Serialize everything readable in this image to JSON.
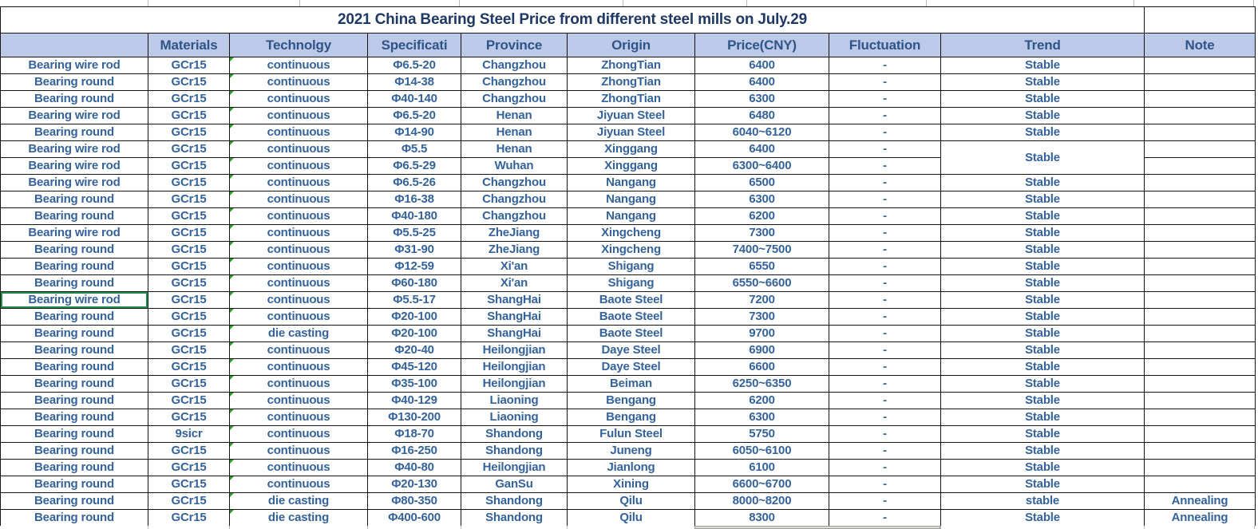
{
  "title": "2021 China Bearing Steel Price from different steel mills on July.29",
  "table": {
    "columns": [
      "",
      "Materials",
      "Technolgy",
      "Specificati",
      "Province",
      "Origin",
      "Price(CNY)",
      "Fluctuation",
      "Trend",
      "Note"
    ],
    "rows": [
      {
        "product": "Bearing wire rod",
        "material": "GCr15",
        "technology": "continuous",
        "specification": "Φ6.5-20",
        "province": "Changzhou",
        "origin": "ZhongTian",
        "price": "6400",
        "fluctuation": "-",
        "trend": "Stable",
        "note": ""
      },
      {
        "product": "Bearing round",
        "material": "GCr15",
        "technology": "continuous",
        "specification": "Φ14-38",
        "province": "Changzhou",
        "origin": "ZhongTian",
        "price": "6400",
        "fluctuation": "-",
        "trend": "Stable",
        "note": ""
      },
      {
        "product": "Bearing round",
        "material": "GCr15",
        "technology": "continuous",
        "specification": "Φ40-140",
        "province": "Changzhou",
        "origin": "ZhongTian",
        "price": "6300",
        "fluctuation": "-",
        "trend": "Stable",
        "note": ""
      },
      {
        "product": "Bearing wire rod",
        "material": "GCr15",
        "technology": "continuous",
        "specification": "Φ6.5-20",
        "province": "Henan",
        "origin": "Jiyuan Steel",
        "price": "6480",
        "fluctuation": "-",
        "trend": "Stable",
        "note": ""
      },
      {
        "product": "Bearing round",
        "material": "GCr15",
        "technology": "continuous",
        "specification": "Φ14-90",
        "province": "Henan",
        "origin": "Jiyuan Steel",
        "price": "6040~6120",
        "fluctuation": "-",
        "trend": "Stable",
        "note": ""
      },
      {
        "product": "Bearing wire rod",
        "material": "GCr15",
        "technology": "continuous",
        "specification": "Φ5.5",
        "province": "Henan",
        "origin": "Xinggang",
        "price": "6400",
        "fluctuation": "-",
        "trend": "Stable",
        "trend_rowspan": 2,
        "note": ""
      },
      {
        "product": "Bearing wire rod",
        "material": "GCr15",
        "technology": "continuous",
        "specification": "Φ6.5-29",
        "province": "Wuhan",
        "origin": "Xinggang",
        "price": "6300~6400",
        "fluctuation": "-",
        "trend": null,
        "note": ""
      },
      {
        "product": "Bearing wire rod",
        "material": "GCr15",
        "technology": "continuous",
        "specification": "Φ6.5-26",
        "province": "Changzhou",
        "origin": "Nangang",
        "price": "6500",
        "fluctuation": "-",
        "trend": "Stable",
        "note": ""
      },
      {
        "product": "Bearing round",
        "material": "GCr15",
        "technology": "continuous",
        "specification": "Φ16-38",
        "province": "Changzhou",
        "origin": "Nangang",
        "price": "6300",
        "fluctuation": "-",
        "trend": "Stable",
        "note": ""
      },
      {
        "product": "Bearing round",
        "material": "GCr15",
        "technology": "continuous",
        "specification": "Φ40-180",
        "province": "Changzhou",
        "origin": "Nangang",
        "price": "6200",
        "fluctuation": "-",
        "trend": "Stable",
        "note": ""
      },
      {
        "product": "Bearing wire rod",
        "material": "GCr15",
        "technology": "continuous",
        "specification": "Φ5.5-25",
        "province": "ZheJiang",
        "origin": "Xingcheng",
        "price": "7300",
        "fluctuation": "-",
        "trend": "Stable",
        "note": ""
      },
      {
        "product": "Bearing round",
        "material": "GCr15",
        "technology": "continuous",
        "specification": "Φ31-90",
        "province": "ZheJiang",
        "origin": "Xingcheng",
        "price": "7400~7500",
        "fluctuation": "-",
        "trend": "Stable",
        "note": ""
      },
      {
        "product": "Bearing round",
        "material": "GCr15",
        "technology": "continuous",
        "specification": "Φ12-59",
        "province": "Xi'an",
        "origin": "Shigang",
        "price": "6550",
        "fluctuation": "-",
        "trend": "Stable",
        "note": ""
      },
      {
        "product": "Bearing round",
        "material": "GCr15",
        "technology": "continuous",
        "specification": "Φ60-180",
        "province": "Xi'an",
        "origin": "Shigang",
        "price": "6550~6600",
        "fluctuation": "-",
        "trend": "Stable",
        "note": ""
      },
      {
        "product": "Bearing wire rod",
        "material": "GCr15",
        "technology": "continuous",
        "specification": "Φ5.5-17",
        "province": "ShangHai",
        "origin": "Baote Steel",
        "price": "7200",
        "fluctuation": "-",
        "trend": "Stable",
        "note": "",
        "selected": true
      },
      {
        "product": "Bearing round",
        "material": "GCr15",
        "technology": "continuous",
        "specification": "Φ20-100",
        "province": "ShangHai",
        "origin": "Baote Steel",
        "price": "7300",
        "fluctuation": "-",
        "trend": "Stable",
        "note": ""
      },
      {
        "product": "Bearing round",
        "material": "GCr15",
        "technology": "die casting",
        "specification": "Φ20-100",
        "province": "ShangHai",
        "origin": "Baote Steel",
        "price": "9700",
        "fluctuation": "-",
        "trend": "Stable",
        "note": ""
      },
      {
        "product": "Bearing round",
        "material": "GCr15",
        "technology": "continuous",
        "specification": "Φ20-40",
        "province": "Heilongjian",
        "origin": "Daye Steel",
        "price": "6900",
        "fluctuation": "-",
        "trend": "Stable",
        "note": ""
      },
      {
        "product": "Bearing round",
        "material": "GCr15",
        "technology": "continuous",
        "specification": "Φ45-120",
        "province": "Heilongjian",
        "origin": "Daye Steel",
        "price": "6600",
        "fluctuation": "-",
        "trend": "Stable",
        "note": ""
      },
      {
        "product": "Bearing round",
        "material": "GCr15",
        "technology": "continuous",
        "specification": "Φ35-100",
        "province": "Heilongjian",
        "origin": "Beiman",
        "price": "6250~6350",
        "fluctuation": "-",
        "trend": "Stable",
        "note": ""
      },
      {
        "product": "Bearing round",
        "material": "GCr15",
        "technology": "continuous",
        "specification": "Φ40-129",
        "province": "Liaoning",
        "origin": "Bengang",
        "price": "6200",
        "fluctuation": "-",
        "trend": "Stable",
        "note": ""
      },
      {
        "product": "Bearing round",
        "material": "GCr15",
        "technology": "continuous",
        "specification": "Φ130-200",
        "province": "Liaoning",
        "origin": "Bengang",
        "price": "6300",
        "fluctuation": "-",
        "trend": "Stable",
        "note": ""
      },
      {
        "product": "Bearing round",
        "material": "9sicr",
        "technology": "continuous",
        "specification": "Φ18-70",
        "province": "Shandong",
        "origin": "Fulun Steel",
        "price": "5750",
        "fluctuation": "-",
        "trend": "Stable",
        "note": ""
      },
      {
        "product": "Bearing round",
        "material": "GCr15",
        "technology": "continuous",
        "specification": "Φ16-250",
        "province": "Shandong",
        "origin": "Juneng",
        "price": "6050~6100",
        "fluctuation": "-",
        "trend": "Stable",
        "note": ""
      },
      {
        "product": "Bearing round",
        "material": "GCr15",
        "technology": "continuous",
        "specification": "Φ40-80",
        "province": "Heilongjian",
        "origin": "Jianlong",
        "price": "6100",
        "fluctuation": "-",
        "trend": "Stable",
        "note": ""
      },
      {
        "product": "Bearing round",
        "material": "GCr15",
        "technology": "continuous",
        "specification": "Φ20-130",
        "province": "GanSu",
        "origin": "Xining",
        "price": "6600~6700",
        "fluctuation": "-",
        "trend": "Stable",
        "note": ""
      },
      {
        "product": "Bearing round",
        "material": "GCr15",
        "technology": "die casting",
        "specification": "Φ80-350",
        "province": "Shandong",
        "origin": "Qilu",
        "price": "8000~8200",
        "fluctuation": "-",
        "trend": "stable",
        "note": "Annealing"
      },
      {
        "product": "Bearing round",
        "material": "GCr15",
        "technology": "die casting",
        "specification": "Φ400-600",
        "province": "Shandong",
        "origin": "Qilu",
        "price": "8300",
        "fluctuation": "-",
        "trend": "Stable",
        "note": "Annealing"
      }
    ]
  },
  "colors": {
    "header_bg": "#bdc9e8",
    "header_text": "#2f5588",
    "title_text": "#1f3864",
    "body_text": "#35639c",
    "price_text": "#0070c0",
    "merged_trend_text": "#1f3864",
    "error_triangle": "#2aa02a",
    "selection_green": "#1e8e4f"
  }
}
